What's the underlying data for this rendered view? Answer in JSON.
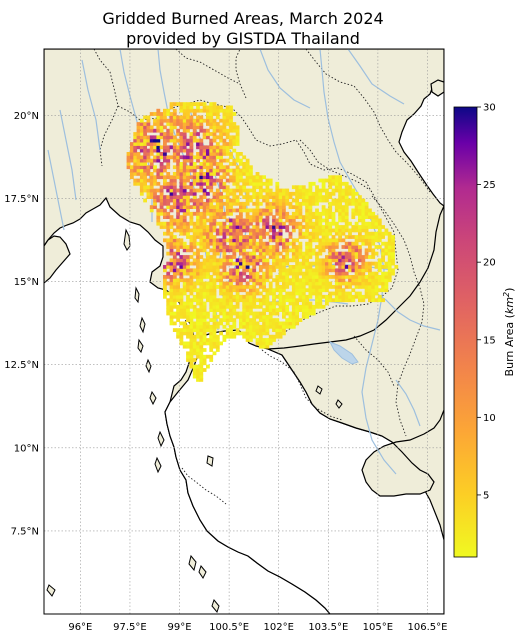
{
  "title_line_1": "Gridded Burned Areas, March 2024",
  "title_line_2": "provided by GISTDA Thailand",
  "map": {
    "projection": "PlateCarree",
    "lon_range": [
      94.9,
      107.0
    ],
    "lat_range": [
      5.0,
      22.0
    ],
    "land_color": "#efedd9",
    "water_color": "#ffffff",
    "river_color": "#9dbfde",
    "coastline_color": "#000000",
    "border_color": "#333333",
    "gridlines": true,
    "lon_ticks": [
      {
        "value": 96.0,
        "label": "96°E"
      },
      {
        "value": 97.5,
        "label": "97.5°E"
      },
      {
        "value": 99.0,
        "label": "99°E"
      },
      {
        "value": 100.5,
        "label": "100.5°E"
      },
      {
        "value": 102.0,
        "label": "102°E"
      },
      {
        "value": 103.5,
        "label": "103.5°E"
      },
      {
        "value": 105.0,
        "label": "105°E"
      },
      {
        "value": 106.5,
        "label": "106.5°E"
      }
    ],
    "lat_ticks": [
      {
        "value": 20.0,
        "label": "20°N"
      },
      {
        "value": 17.5,
        "label": "17.5°N"
      },
      {
        "value": 15.0,
        "label": "15°N"
      },
      {
        "value": 12.5,
        "label": "12.5°N"
      },
      {
        "value": 10.0,
        "label": "10°N"
      },
      {
        "value": 7.5,
        "label": "7.5°N"
      }
    ],
    "colormap": "plasma_r",
    "grid_resolution_deg": 0.1
  },
  "colorbar": {
    "label_prefix": "Burn Area (",
    "label_unit": "km",
    "label_exponent": "2",
    "label_suffix": ")",
    "vmin": 1,
    "vmax": 30,
    "ticks": [
      {
        "value": 5,
        "label": "5"
      },
      {
        "value": 10,
        "label": "10"
      },
      {
        "value": 15,
        "label": "15"
      },
      {
        "value": 20,
        "label": "20"
      },
      {
        "value": 25,
        "label": "25"
      },
      {
        "value": 30,
        "label": "30"
      }
    ]
  }
}
